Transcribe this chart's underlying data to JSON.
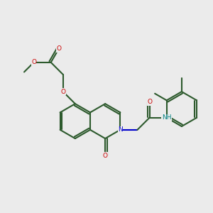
{
  "bg_color": "#ebebeb",
  "bond_color": "#2d5a2d",
  "bond_width": 1.5,
  "N_color": "#0000cc",
  "O_color": "#cc0000",
  "NH_color": "#008080",
  "figsize": [
    3.0,
    3.0
  ],
  "dpi": 100,
  "xlim": [
    0,
    10
  ],
  "ylim": [
    0,
    10
  ]
}
